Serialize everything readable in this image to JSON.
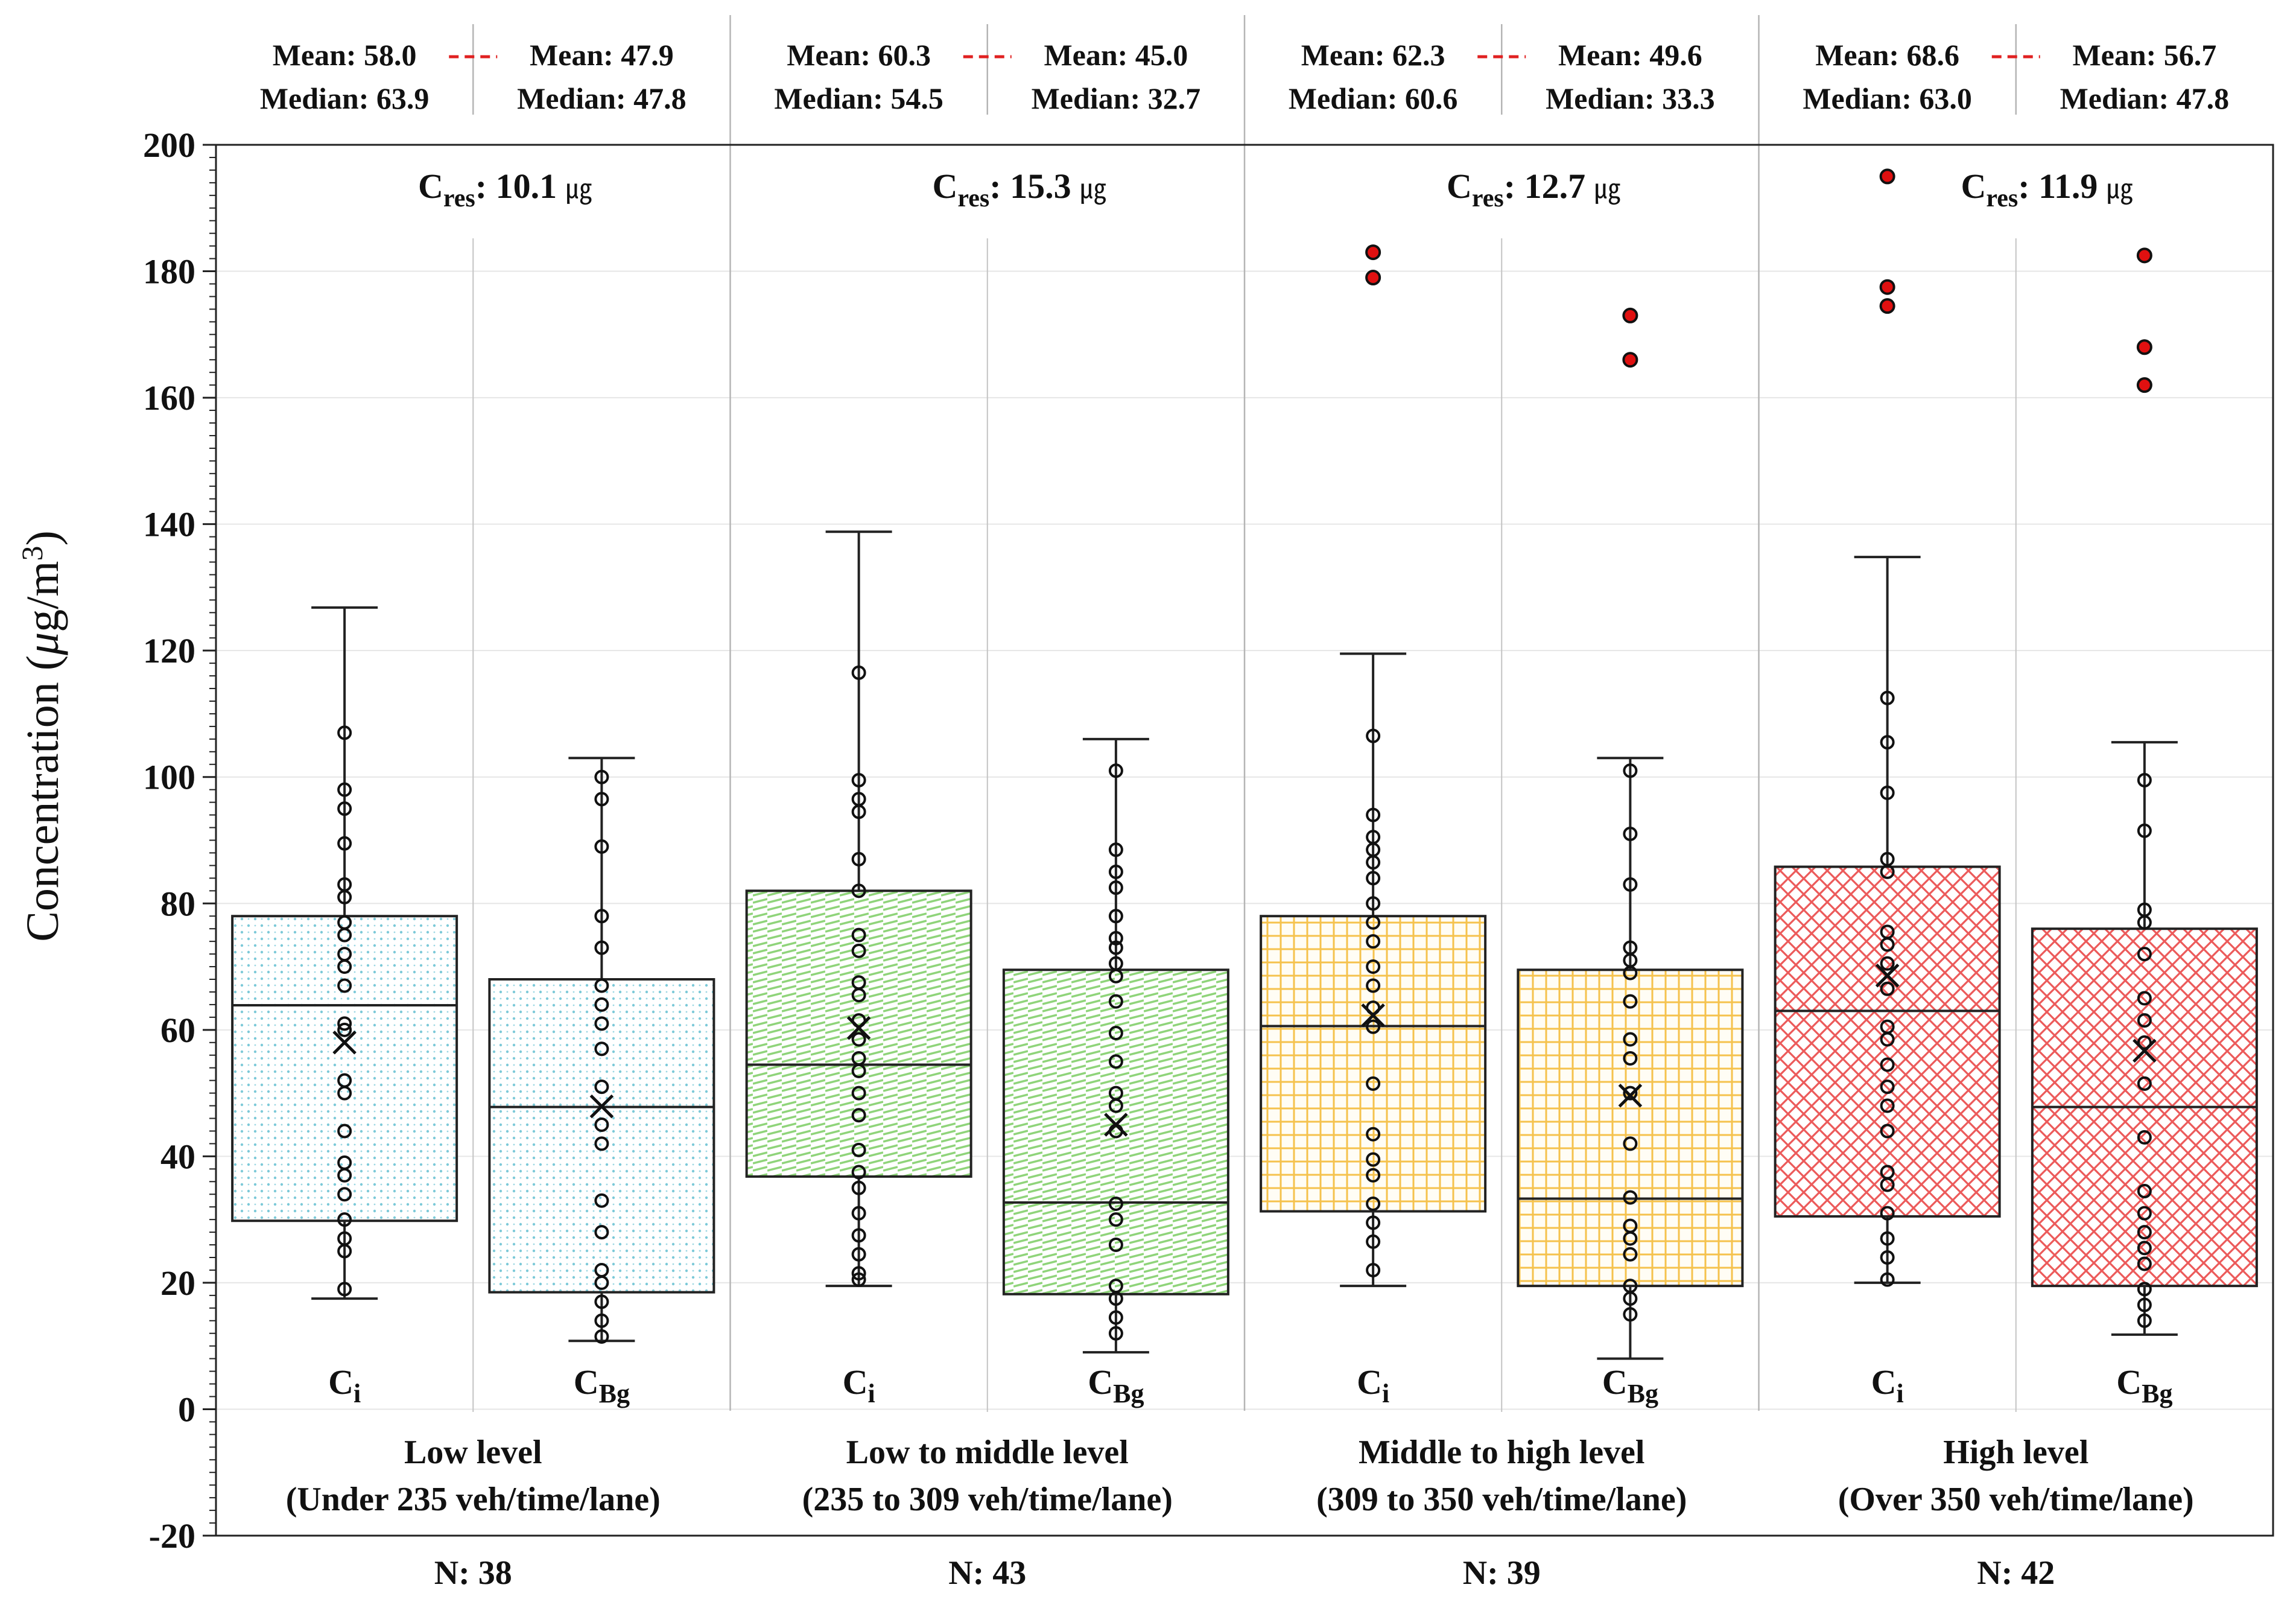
{
  "chart_data": {
    "type": "box",
    "ylabel": "Concentration (μg/m³)",
    "ylabel_text": "Concentration",
    "ylabel_unit_mu": "μ",
    "ylabel_unit_rest": "g/m",
    "ylabel_unit_sup": "3",
    "open_paren": "(",
    "close_paren": ")",
    "ylim": [
      -20,
      200
    ],
    "yticks": [
      "200",
      "180",
      "160",
      "140",
      "120",
      "100",
      "80",
      "60",
      "40",
      "20",
      "0",
      "-20"
    ],
    "ytick_values": [
      200,
      180,
      160,
      140,
      120,
      100,
      80,
      60,
      40,
      20,
      0,
      -20
    ],
    "mean_label": "Mean:",
    "median_label": "Median:",
    "n_label": "N:",
    "cres_main": "C",
    "cres_sub": "res",
    "cres_colon": ":",
    "groups": [
      {
        "name": "Low level",
        "range": "(Under 235 veh/time/lane)",
        "n": "38",
        "cres_value": "10.1",
        "cres_unit": "㎍",
        "fill": "#7cc9d8",
        "pattern": "dots",
        "boxes": [
          {
            "label_main": "C",
            "label_sub": "i",
            "mean_text": "58.0",
            "median_text": "63.9",
            "whisker_low": 17.5,
            "q1": 29.8,
            "median": 63.9,
            "q3": 78.0,
            "whisker_high": 126.8,
            "mean": 58.0,
            "points": [
              19,
              25,
              27,
              30,
              34,
              37,
              39,
              44,
              50,
              52,
              60,
              61,
              67,
              70,
              72,
              75,
              77,
              81,
              83,
              89.5,
              95,
              98,
              107
            ],
            "outliers": []
          },
          {
            "label_main": "C",
            "label_sub": "Bg",
            "mean_text": "47.9",
            "median_text": "47.8",
            "whisker_low": 10.8,
            "q1": 18.5,
            "median": 47.8,
            "q3": 68.0,
            "whisker_high": 103.0,
            "mean": 47.9,
            "points": [
              11.5,
              14,
              17,
              20,
              22,
              28,
              33,
              42,
              45,
              51,
              57,
              61,
              64,
              67,
              73,
              78,
              89,
              96.5,
              100
            ],
            "outliers": []
          }
        ]
      },
      {
        "name": "Low to middle level",
        "range": "(235 to 309 veh/time/lane)",
        "n": "43",
        "cres_value": "15.3",
        "cres_unit": "㎍",
        "fill": "#8fd47a",
        "pattern": "hatch",
        "boxes": [
          {
            "label_main": "C",
            "label_sub": "i",
            "mean_text": "60.3",
            "median_text": "54.5",
            "whisker_low": 19.5,
            "q1": 36.8,
            "median": 54.5,
            "q3": 82.0,
            "whisker_high": 138.8,
            "mean": 60.3,
            "points": [
              20.5,
              21.5,
              24.5,
              27.5,
              31,
              35,
              37.5,
              41,
              46.5,
              50,
              53.5,
              55.5,
              58.5,
              61.5,
              65.5,
              67.5,
              72.5,
              75,
              82,
              87,
              94.5,
              96.5,
              99.5,
              116.5
            ],
            "outliers": []
          },
          {
            "label_main": "C",
            "label_sub": "Bg",
            "mean_text": "45.0",
            "median_text": "32.7",
            "whisker_low": 9.0,
            "q1": 18.2,
            "median": 32.7,
            "q3": 69.5,
            "whisker_high": 106.0,
            "mean": 45.0,
            "points": [
              12,
              14.5,
              17.5,
              19.5,
              26,
              30,
              32.5,
              44,
              48,
              50,
              55,
              59.5,
              64.5,
              68.5,
              70.5,
              73,
              74.5,
              78,
              82.5,
              85,
              88.5,
              101
            ],
            "outliers": []
          }
        ]
      },
      {
        "name": "Middle to high level",
        "range": "(309 to 350 veh/time/lane)",
        "n": "39",
        "cres_value": "12.7",
        "cres_unit": "㎍",
        "fill": "#f5c24d",
        "pattern": "grid",
        "boxes": [
          {
            "label_main": "C",
            "label_sub": "i",
            "mean_text": "62.3",
            "median_text": "60.6",
            "whisker_low": 19.5,
            "q1": 31.3,
            "median": 60.6,
            "q3": 78.0,
            "whisker_high": 119.5,
            "mean": 62.3,
            "points": [
              22,
              26.5,
              29.5,
              32.5,
              37,
              39.5,
              43.5,
              51.5,
              60.5,
              63.5,
              67,
              70,
              74,
              77,
              80,
              84,
              86.5,
              88.5,
              90.5,
              94,
              106.5
            ],
            "outliers": [
              179,
              183
            ]
          },
          {
            "label_main": "C",
            "label_sub": "Bg",
            "mean_text": "49.6",
            "median_text": "33.3",
            "whisker_low": 8.0,
            "q1": 19.5,
            "median": 33.3,
            "q3": 69.5,
            "whisker_high": 103.0,
            "mean": 49.6,
            "points": [
              15,
              17.5,
              19.5,
              24.5,
              27,
              29,
              33.5,
              42,
              50,
              55.5,
              58.5,
              64.5,
              69,
              71,
              73,
              83,
              91,
              101
            ],
            "outliers": [
              166,
              173
            ]
          }
        ]
      },
      {
        "name": "High level",
        "range": "(Over 350 veh/time/lane)",
        "n": "42",
        "cres_value": "11.9",
        "cres_unit": "㎍",
        "fill": "#ec5a5a",
        "pattern": "crosshatch",
        "boxes": [
          {
            "label_main": "C",
            "label_sub": "i",
            "mean_text": "68.6",
            "median_text": "63.0",
            "whisker_low": 20.0,
            "q1": 30.5,
            "median": 63.0,
            "q3": 85.8,
            "whisker_high": 134.8,
            "mean": 68.6,
            "points": [
              20.5,
              24,
              27,
              31,
              35.5,
              37.5,
              44,
              48,
              51,
              54.5,
              58.5,
              60.5,
              66.5,
              70.5,
              73.5,
              75.5,
              85,
              87,
              97.5,
              105.5,
              112.5
            ],
            "outliers": [
              174.5,
              177.5,
              195
            ]
          },
          {
            "label_main": "C",
            "label_sub": "Bg",
            "mean_text": "56.7",
            "median_text": "47.8",
            "whisker_low": 11.8,
            "q1": 19.5,
            "median": 47.8,
            "q3": 76.0,
            "whisker_high": 105.5,
            "mean": 56.7,
            "points": [
              14,
              16.5,
              19,
              23,
              25.5,
              28,
              31,
              34.5,
              43,
              51.5,
              58,
              61.5,
              65,
              72,
              77,
              79,
              91.5,
              99.5
            ],
            "outliers": [
              162,
              168,
              182.5
            ]
          }
        ]
      }
    ]
  }
}
